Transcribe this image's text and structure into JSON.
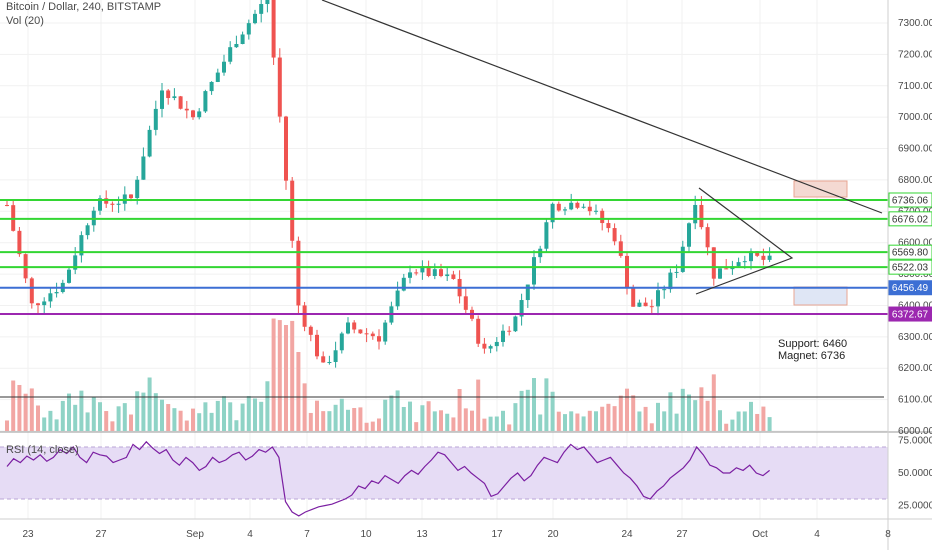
{
  "header": {
    "symbol_line": "Bitcoin / Dollar, 240, BITSTAMP",
    "volume_label": "Vol (20)",
    "rsi_label": "RSI (14, close)"
  },
  "annotation": {
    "support": "Support: 6460",
    "magnet": "Magnet: 6736"
  },
  "colors": {
    "up": "#26a69a",
    "down": "#ef5350",
    "green_level": "#33d633",
    "blue_level": "#3c6fd4",
    "purple_level": "#9c27b0",
    "rsi_line": "#7b1fa2",
    "rsi_band": "#e6dcf5"
  },
  "chart_data": [
    {
      "type": "candlestick",
      "ylim": [
        6000,
        7380
      ],
      "y_ticks": [
        "7300.00",
        "7200.00",
        "7100.00",
        "7000.00",
        "6900.00",
        "6800.00",
        "6700.00",
        "6600.00",
        "6500.00",
        "6400.00",
        "6300.00",
        "6200.00",
        "6100.00",
        "6000.00"
      ],
      "x_ticks": [
        "23",
        "27",
        "Sep",
        "4",
        "7",
        "10",
        "13",
        "17",
        "20",
        "24",
        "27",
        "Oct",
        "4",
        "8"
      ],
      "series_waypoints": [
        {
          "t": 0,
          "price": 6720
        },
        {
          "t": 4,
          "price": 6400
        },
        {
          "t": 9,
          "price": 6470
        },
        {
          "t": 14,
          "price": 6720
        },
        {
          "t": 20,
          "price": 6740
        },
        {
          "t": 25,
          "price": 7100
        },
        {
          "t": 30,
          "price": 7000
        },
        {
          "t": 37,
          "price": 7250
        },
        {
          "t": 42,
          "price": 7380
        },
        {
          "t": 44,
          "price": 7000
        },
        {
          "t": 47,
          "price": 6400
        },
        {
          "t": 51,
          "price": 6200
        },
        {
          "t": 55,
          "price": 6330
        },
        {
          "t": 60,
          "price": 6300
        },
        {
          "t": 65,
          "price": 6520
        },
        {
          "t": 72,
          "price": 6480
        },
        {
          "t": 77,
          "price": 6250
        },
        {
          "t": 82,
          "price": 6360
        },
        {
          "t": 88,
          "price": 6720
        },
        {
          "t": 93,
          "price": 6730
        },
        {
          "t": 98,
          "price": 6620
        },
        {
          "t": 101,
          "price": 6400
        },
        {
          "t": 104,
          "price": 6400
        },
        {
          "t": 108,
          "price": 6520
        },
        {
          "t": 111,
          "price": 6740
        },
        {
          "t": 114,
          "price": 6500
        },
        {
          "t": 119,
          "price": 6560
        },
        {
          "t": 123,
          "price": 6540
        }
      ],
      "levels": [
        {
          "price": 6736.06,
          "label": "6736.06",
          "kind": "green"
        },
        {
          "price": 6676.02,
          "label": "6676.02",
          "kind": "green"
        },
        {
          "price": 6569.8,
          "label": "6569.80",
          "kind": "green"
        },
        {
          "price": 6522.03,
          "label": "6522.03",
          "kind": "green"
        },
        {
          "price": 6456.49,
          "label": "6456.49",
          "kind": "blue"
        },
        {
          "price": 6372.67,
          "label": "6372.67",
          "kind": "purple"
        }
      ]
    },
    {
      "type": "line",
      "name": "RSI (14, close)",
      "ylim": [
        12,
        80
      ],
      "y_ticks": [
        "75.0000",
        "50.0000",
        "25.0000"
      ],
      "band": [
        30,
        70
      ],
      "values": [
        55,
        61,
        58,
        63,
        60,
        64,
        59,
        62,
        68,
        65,
        70,
        62,
        58,
        66,
        64,
        63,
        58,
        60,
        62,
        72,
        68,
        74,
        69,
        65,
        68,
        60,
        56,
        62,
        58,
        52,
        55,
        62,
        58,
        60,
        64,
        66,
        60,
        63,
        68,
        66,
        70,
        62,
        28,
        20,
        17,
        20,
        22,
        24,
        25,
        26,
        28,
        30,
        33,
        40,
        38,
        44,
        42,
        48,
        45,
        42,
        48,
        52,
        49,
        55,
        60,
        66,
        64,
        58,
        52,
        55,
        50,
        46,
        42,
        32,
        34,
        40,
        46,
        50,
        44,
        48,
        56,
        62,
        60,
        58,
        66,
        72,
        68,
        70,
        64,
        58,
        60,
        62,
        56,
        50,
        46,
        40,
        32,
        30,
        36,
        40,
        46,
        50,
        54,
        60,
        70,
        64,
        56,
        54,
        50,
        50,
        54,
        52,
        56,
        50,
        48,
        52
      ]
    }
  ]
}
